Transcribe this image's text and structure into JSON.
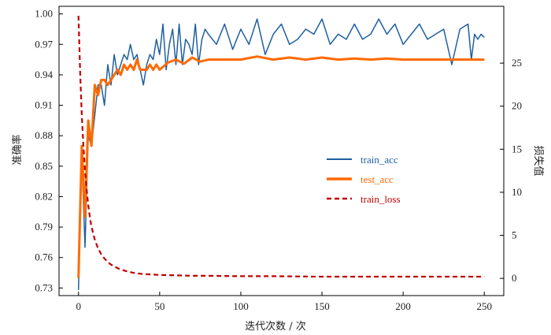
{
  "chart_data": {
    "type": "line",
    "xlabel": "迭代次数 / 次",
    "ylabel_left": "准确率",
    "ylabel_right": "损失值",
    "xlim": [
      -12,
      262
    ],
    "ylim_left": [
      0.7225,
      1.0075
    ],
    "ylim_right": [
      -2.0,
      31.6
    ],
    "x_ticks": [
      0,
      50,
      100,
      150,
      200,
      250
    ],
    "y_left_ticks": [
      "0.73",
      "0.76",
      "0.79",
      "0.82",
      "0.85",
      "0.88",
      "0.91",
      "0.94",
      "0.97",
      "1.00"
    ],
    "y_right_ticks": [
      "0",
      "5",
      "10",
      "15",
      "20",
      "25"
    ],
    "legend": {
      "position": "center-right",
      "entries": [
        {
          "label": "train_acc",
          "color": "#1f5fa0",
          "style": "solid"
        },
        {
          "label": "test_acc",
          "color": "#ff6a00",
          "style": "solid-thick"
        },
        {
          "label": "train_loss",
          "color": "#c00000",
          "style": "dashed"
        }
      ]
    },
    "series": [
      {
        "name": "train_acc",
        "axis": "left",
        "color": "#1f5fa0",
        "x": [
          0,
          2,
          4,
          6,
          8,
          10,
          12,
          14,
          16,
          18,
          20,
          22,
          24,
          26,
          28,
          30,
          32,
          34,
          36,
          38,
          40,
          42,
          44,
          46,
          48,
          50,
          52,
          54,
          56,
          58,
          60,
          62,
          64,
          66,
          68,
          70,
          72,
          74,
          76,
          78,
          80,
          85,
          90,
          95,
          100,
          105,
          110,
          115,
          120,
          125,
          130,
          135,
          140,
          145,
          150,
          155,
          160,
          165,
          170,
          175,
          180,
          185,
          190,
          195,
          200,
          205,
          210,
          215,
          220,
          225,
          230,
          235,
          240,
          242,
          244,
          246,
          248,
          250
        ],
        "values": [
          0.728,
          0.86,
          0.77,
          0.88,
          0.87,
          0.9,
          0.93,
          0.93,
          0.91,
          0.95,
          0.93,
          0.96,
          0.94,
          0.95,
          0.96,
          0.955,
          0.97,
          0.955,
          0.96,
          0.945,
          0.93,
          0.95,
          0.96,
          0.955,
          0.975,
          0.96,
          0.99,
          0.945,
          0.97,
          0.985,
          0.95,
          0.99,
          0.95,
          0.975,
          0.97,
          0.96,
          0.99,
          0.95,
          0.975,
          0.985,
          0.98,
          0.97,
          0.99,
          0.965,
          0.985,
          0.97,
          0.995,
          0.96,
          0.98,
          0.99,
          0.97,
          0.975,
          0.985,
          0.98,
          0.995,
          0.97,
          0.98,
          0.975,
          0.99,
          0.975,
          0.98,
          0.995,
          0.98,
          0.99,
          0.97,
          0.98,
          0.99,
          0.975,
          0.98,
          0.985,
          0.95,
          0.985,
          0.99,
          0.955,
          0.98,
          0.975,
          0.98,
          0.977
        ]
      },
      {
        "name": "test_acc",
        "axis": "left",
        "color": "#ff6a00",
        "x": [
          0,
          2,
          4,
          6,
          8,
          10,
          12,
          14,
          16,
          18,
          20,
          22,
          24,
          26,
          28,
          30,
          32,
          34,
          36,
          38,
          40,
          42,
          44,
          46,
          48,
          50,
          55,
          60,
          65,
          70,
          75,
          80,
          90,
          100,
          110,
          120,
          130,
          140,
          150,
          160,
          170,
          180,
          190,
          200,
          210,
          220,
          230,
          240,
          250
        ],
        "values": [
          0.74,
          0.87,
          0.8,
          0.895,
          0.87,
          0.93,
          0.92,
          0.935,
          0.935,
          0.93,
          0.935,
          0.94,
          0.945,
          0.94,
          0.95,
          0.945,
          0.95,
          0.945,
          0.955,
          0.945,
          0.945,
          0.945,
          0.95,
          0.945,
          0.95,
          0.945,
          0.952,
          0.955,
          0.951,
          0.957,
          0.953,
          0.955,
          0.955,
          0.955,
          0.958,
          0.955,
          0.957,
          0.955,
          0.957,
          0.955,
          0.956,
          0.955,
          0.956,
          0.955,
          0.955,
          0.955,
          0.955,
          0.955,
          0.955
        ]
      },
      {
        "name": "train_loss",
        "axis": "right",
        "color": "#c00000",
        "x": [
          0,
          1,
          2,
          3,
          4,
          5,
          6,
          7,
          8,
          10,
          12,
          14,
          16,
          18,
          20,
          25,
          30,
          35,
          40,
          45,
          50,
          60,
          70,
          80,
          100,
          120,
          150,
          200,
          250
        ],
        "values": [
          30.5,
          24.0,
          19.0,
          15.5,
          12.5,
          10.3,
          8.5,
          7.1,
          6.0,
          4.5,
          3.5,
          2.8,
          2.3,
          1.9,
          1.6,
          1.1,
          0.8,
          0.6,
          0.5,
          0.45,
          0.4,
          0.35,
          0.3,
          0.3,
          0.25,
          0.25,
          0.2,
          0.2,
          0.2
        ]
      }
    ]
  }
}
